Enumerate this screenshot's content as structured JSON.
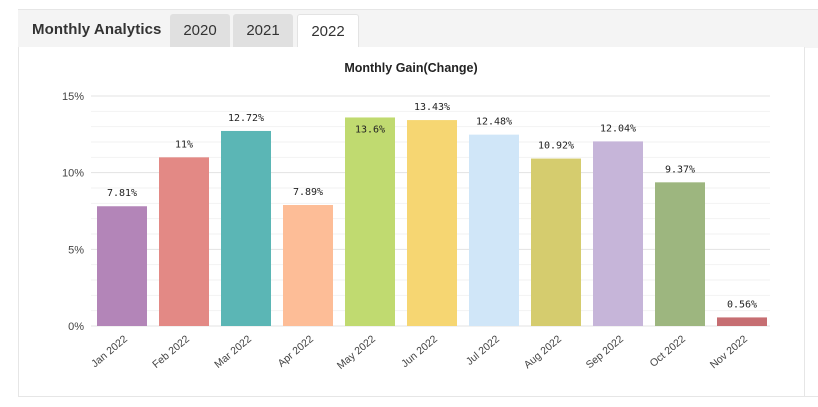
{
  "panel": {
    "title": "Monthly Analytics"
  },
  "tabs": [
    {
      "label": "2020",
      "active": false
    },
    {
      "label": "2021",
      "active": false
    },
    {
      "label": "2022",
      "active": true
    }
  ],
  "chart_data": {
    "type": "bar",
    "title": "Monthly Gain(Change)",
    "categories": [
      "Jan 2022",
      "Feb 2022",
      "Mar 2022",
      "Apr 2022",
      "May 2022",
      "Jun 2022",
      "Jul 2022",
      "Aug 2022",
      "Sep 2022",
      "Oct 2022",
      "Nov 2022"
    ],
    "values": [
      7.81,
      11,
      12.72,
      7.89,
      13.6,
      13.43,
      12.48,
      10.92,
      12.04,
      9.37,
      0.56
    ],
    "labels": [
      "7.81%",
      "11%",
      "12.72%",
      "7.89%",
      "13.6%",
      "13.43%",
      "12.48%",
      "10.92%",
      "12.04%",
      "9.37%",
      "0.56%"
    ],
    "colors": [
      "#b385b8",
      "#e38985",
      "#5bb6b5",
      "#fdbd97",
      "#c0da70",
      "#f6d672",
      "#d0e6f8",
      "#d5cc6e",
      "#c6b5d9",
      "#9db67f",
      "#c66e72"
    ],
    "yticks": [
      "0%",
      "5%",
      "10%",
      "15%"
    ],
    "ylim": [
      0,
      15
    ],
    "grid": true
  }
}
